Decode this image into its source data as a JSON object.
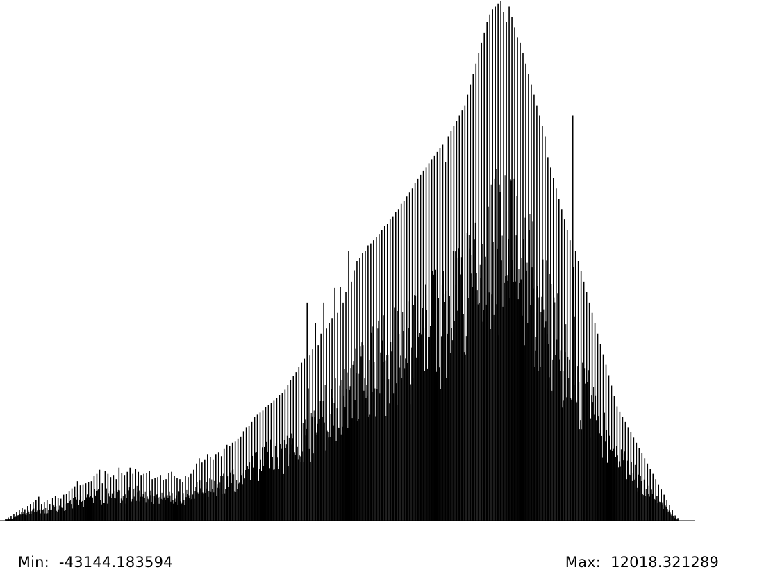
{
  "colors": {
    "background": "#ffffff",
    "bars": "#000000",
    "text": "#000000"
  },
  "stats": {
    "min_label": "Min:",
    "min_value": "-43144.183594",
    "max_label": "Max:",
    "max_value": "12018.321289"
  },
  "chart_data": {
    "type": "bar",
    "title": "",
    "xlabel": "",
    "ylabel": "",
    "xlim": [
      -43144.183594,
      12018.321289
    ],
    "ylim": [
      0,
      1
    ],
    "grid": false,
    "legend": "none",
    "bins": 1000,
    "series": [
      {
        "values_tall": [
          [
            4,
            0.004
          ],
          [
            8,
            0.006
          ],
          [
            12,
            0.008
          ],
          [
            16,
            0.012
          ],
          [
            20,
            0.016
          ],
          [
            24,
            0.02
          ],
          [
            28,
            0.024
          ],
          [
            32,
            0.022
          ],
          [
            36,
            0.028
          ],
          [
            40,
            0.032
          ],
          [
            44,
            0.036
          ],
          [
            48,
            0.04
          ],
          [
            52,
            0.046
          ],
          [
            56,
            0.032
          ],
          [
            60,
            0.036
          ],
          [
            64,
            0.04
          ],
          [
            68,
            0.032
          ],
          [
            72,
            0.044
          ],
          [
            76,
            0.048
          ],
          [
            80,
            0.044
          ],
          [
            84,
            0.042
          ],
          [
            88,
            0.05
          ],
          [
            92,
            0.052
          ],
          [
            96,
            0.056
          ],
          [
            100,
            0.062
          ],
          [
            104,
            0.066
          ],
          [
            108,
            0.076
          ],
          [
            112,
            0.068
          ],
          [
            116,
            0.07
          ],
          [
            120,
            0.072
          ],
          [
            124,
            0.074
          ],
          [
            128,
            0.076
          ],
          [
            132,
            0.086
          ],
          [
            136,
            0.09
          ],
          [
            140,
            0.098
          ],
          [
            144,
            0.072
          ],
          [
            148,
            0.096
          ],
          [
            152,
            0.09
          ],
          [
            156,
            0.084
          ],
          [
            160,
            0.088
          ],
          [
            164,
            0.08
          ],
          [
            168,
            0.102
          ],
          [
            172,
            0.092
          ],
          [
            176,
            0.088
          ],
          [
            180,
            0.094
          ],
          [
            184,
            0.102
          ],
          [
            188,
            0.09
          ],
          [
            192,
            0.1
          ],
          [
            196,
            0.094
          ],
          [
            200,
            0.088
          ],
          [
            204,
            0.09
          ],
          [
            208,
            0.092
          ],
          [
            212,
            0.096
          ],
          [
            216,
            0.08
          ],
          [
            220,
            0.082
          ],
          [
            224,
            0.084
          ],
          [
            228,
            0.088
          ],
          [
            232,
            0.078
          ],
          [
            236,
            0.08
          ],
          [
            240,
            0.092
          ],
          [
            244,
            0.094
          ],
          [
            248,
            0.086
          ],
          [
            252,
            0.082
          ],
          [
            256,
            0.08
          ],
          [
            260,
            0.074
          ],
          [
            264,
            0.086
          ],
          [
            268,
            0.084
          ],
          [
            272,
            0.09
          ],
          [
            276,
            0.098
          ],
          [
            280,
            0.11
          ],
          [
            284,
            0.12
          ],
          [
            288,
            0.112
          ],
          [
            292,
            0.118
          ],
          [
            296,
            0.128
          ],
          [
            300,
            0.122
          ],
          [
            304,
            0.118
          ],
          [
            308,
            0.128
          ],
          [
            312,
            0.132
          ],
          [
            316,
            0.124
          ],
          [
            320,
            0.138
          ],
          [
            324,
            0.146
          ],
          [
            328,
            0.144
          ],
          [
            332,
            0.15
          ],
          [
            336,
            0.152
          ],
          [
            340,
            0.158
          ],
          [
            344,
            0.162
          ],
          [
            348,
            0.172
          ],
          [
            352,
            0.18
          ],
          [
            356,
            0.182
          ],
          [
            360,
            0.19
          ],
          [
            364,
            0.2
          ],
          [
            368,
            0.204
          ],
          [
            372,
            0.208
          ],
          [
            376,
            0.212
          ],
          [
            380,
            0.218
          ],
          [
            384,
            0.222
          ],
          [
            388,
            0.226
          ],
          [
            392,
            0.232
          ],
          [
            396,
            0.236
          ],
          [
            400,
            0.242
          ],
          [
            404,
            0.246
          ],
          [
            408,
            0.252
          ],
          [
            412,
            0.262
          ],
          [
            416,
            0.27
          ],
          [
            420,
            0.278
          ],
          [
            424,
            0.286
          ],
          [
            428,
            0.296
          ],
          [
            432,
            0.304
          ],
          [
            436,
            0.312
          ],
          [
            440,
            0.42
          ],
          [
            444,
            0.318
          ],
          [
            448,
            0.33
          ],
          [
            452,
            0.38
          ],
          [
            456,
            0.338
          ],
          [
            460,
            0.36
          ],
          [
            464,
            0.42
          ],
          [
            468,
            0.37
          ],
          [
            472,
            0.38
          ],
          [
            476,
            0.39
          ],
          [
            480,
            0.448
          ],
          [
            484,
            0.4
          ],
          [
            488,
            0.45
          ],
          [
            492,
            0.42
          ],
          [
            496,
            0.44
          ],
          [
            500,
            0.52
          ],
          [
            504,
            0.46
          ],
          [
            508,
            0.482
          ],
          [
            512,
            0.5
          ],
          [
            516,
            0.506
          ],
          [
            520,
            0.516
          ],
          [
            524,
            0.52
          ],
          [
            528,
            0.53
          ],
          [
            532,
            0.534
          ],
          [
            536,
            0.54
          ],
          [
            540,
            0.546
          ],
          [
            544,
            0.552
          ],
          [
            548,
            0.56
          ],
          [
            552,
            0.568
          ],
          [
            556,
            0.572
          ],
          [
            560,
            0.58
          ],
          [
            564,
            0.586
          ],
          [
            568,
            0.594
          ],
          [
            572,
            0.6
          ],
          [
            576,
            0.61
          ],
          [
            580,
            0.616
          ],
          [
            584,
            0.624
          ],
          [
            588,
            0.632
          ],
          [
            592,
            0.64
          ],
          [
            596,
            0.65
          ],
          [
            600,
            0.658
          ],
          [
            604,
            0.666
          ],
          [
            608,
            0.674
          ],
          [
            612,
            0.68
          ],
          [
            616,
            0.688
          ],
          [
            620,
            0.696
          ],
          [
            624,
            0.702
          ],
          [
            628,
            0.71
          ],
          [
            632,
            0.718
          ],
          [
            636,
            0.724
          ],
          [
            640,
            0.69
          ],
          [
            644,
            0.74
          ],
          [
            648,
            0.75
          ],
          [
            652,
            0.76
          ],
          [
            656,
            0.77
          ],
          [
            660,
            0.78
          ],
          [
            664,
            0.79
          ],
          [
            668,
            0.8
          ],
          [
            672,
            0.82
          ],
          [
            676,
            0.84
          ],
          [
            680,
            0.86
          ],
          [
            684,
            0.88
          ],
          [
            688,
            0.9
          ],
          [
            692,
            0.92
          ],
          [
            696,
            0.94
          ],
          [
            700,
            0.96
          ],
          [
            704,
            0.975
          ],
          [
            708,
            0.985
          ],
          [
            712,
            0.99
          ],
          [
            716,
            0.995
          ],
          [
            720,
            1.0
          ],
          [
            724,
            0.98
          ],
          [
            728,
            0.96
          ],
          [
            732,
            0.99
          ],
          [
            736,
            0.97
          ],
          [
            740,
            0.95
          ],
          [
            744,
            0.93
          ],
          [
            748,
            0.92
          ],
          [
            752,
            0.9
          ],
          [
            756,
            0.88
          ],
          [
            760,
            0.86
          ],
          [
            764,
            0.84
          ],
          [
            768,
            0.82
          ],
          [
            772,
            0.8
          ],
          [
            776,
            0.78
          ],
          [
            780,
            0.76
          ],
          [
            784,
            0.74
          ],
          [
            788,
            0.7
          ],
          [
            792,
            0.68
          ],
          [
            796,
            0.66
          ],
          [
            800,
            0.64
          ],
          [
            804,
            0.62
          ],
          [
            808,
            0.6
          ],
          [
            812,
            0.58
          ],
          [
            816,
            0.56
          ],
          [
            820,
            0.54
          ],
          [
            824,
            0.78
          ],
          [
            828,
            0.52
          ],
          [
            832,
            0.5
          ],
          [
            836,
            0.48
          ],
          [
            840,
            0.46
          ],
          [
            844,
            0.44
          ],
          [
            848,
            0.42
          ],
          [
            852,
            0.4
          ],
          [
            856,
            0.38
          ],
          [
            860,
            0.36
          ],
          [
            864,
            0.34
          ],
          [
            868,
            0.32
          ],
          [
            872,
            0.3
          ],
          [
            876,
            0.28
          ],
          [
            880,
            0.26
          ],
          [
            884,
            0.24
          ],
          [
            888,
            0.22
          ],
          [
            892,
            0.21
          ],
          [
            896,
            0.2
          ],
          [
            900,
            0.19
          ],
          [
            904,
            0.18
          ],
          [
            908,
            0.17
          ],
          [
            912,
            0.16
          ],
          [
            916,
            0.15
          ],
          [
            920,
            0.14
          ],
          [
            924,
            0.13
          ],
          [
            928,
            0.12
          ],
          [
            932,
            0.11
          ],
          [
            936,
            0.1
          ],
          [
            940,
            0.09
          ],
          [
            944,
            0.08
          ],
          [
            948,
            0.07
          ],
          [
            952,
            0.06
          ],
          [
            956,
            0.05
          ],
          [
            960,
            0.04
          ],
          [
            964,
            0.03
          ],
          [
            968,
            0.02
          ],
          [
            972,
            0.01
          ],
          [
            976,
            0.005
          ]
        ]
      }
    ]
  }
}
